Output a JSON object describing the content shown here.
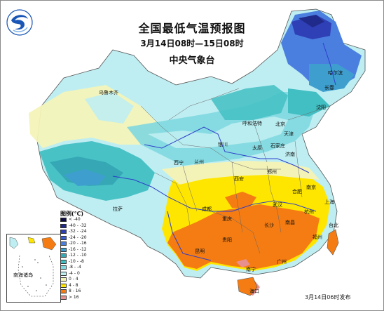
{
  "header": {
    "title": "全国最低气温预报图",
    "period": "3月14日08时—15日08时",
    "agency": "中央气象台"
  },
  "legend": {
    "title": "图例(℃)",
    "items": [
      {
        "label": "< -40",
        "color": "#0b0b47"
      },
      {
        "label": "-40 - -32",
        "color": "#1f2a8a"
      },
      {
        "label": "-32 - -24",
        "color": "#2f3fb6"
      },
      {
        "label": "-24 - -20",
        "color": "#3b5fd0"
      },
      {
        "label": "-20 - -16",
        "color": "#4a7fe0"
      },
      {
        "label": "-16 - -12",
        "color": "#3e9fcf"
      },
      {
        "label": "-12 - -10",
        "color": "#35a7b5"
      },
      {
        "label": "-10 - -8",
        "color": "#42bfc3"
      },
      {
        "label": "-8 - -4",
        "color": "#7fd8e0"
      },
      {
        "label": "-4 - 0",
        "color": "#bfeef2"
      },
      {
        "label": "0 - 4",
        "color": "#f3f3b8"
      },
      {
        "label": "4 - 8",
        "color": "#ffe600"
      },
      {
        "label": "8 - 16",
        "color": "#f57c12"
      },
      {
        "label": "> 16",
        "color": "#e88f8f"
      }
    ]
  },
  "cities": [
    {
      "name": "乌鲁木齐"
    },
    {
      "name": "哈尔滨"
    },
    {
      "name": "长春"
    },
    {
      "name": "沈阳"
    },
    {
      "name": "呼和浩特"
    },
    {
      "name": "北京"
    },
    {
      "name": "天津"
    },
    {
      "name": "石家庄"
    },
    {
      "name": "太原"
    },
    {
      "name": "济南"
    },
    {
      "name": "银川"
    },
    {
      "name": "兰州"
    },
    {
      "name": "西宁"
    },
    {
      "name": "郑州"
    },
    {
      "name": "西安"
    },
    {
      "name": "合肥"
    },
    {
      "name": "南京"
    },
    {
      "name": "上海"
    },
    {
      "name": "武汉"
    },
    {
      "name": "杭州"
    },
    {
      "name": "成都"
    },
    {
      "name": "重庆"
    },
    {
      "name": "拉萨"
    },
    {
      "name": "长沙"
    },
    {
      "name": "南昌"
    },
    {
      "name": "福州"
    },
    {
      "name": "贵阳"
    },
    {
      "name": "昆明"
    },
    {
      "name": "南宁"
    },
    {
      "name": "广州"
    },
    {
      "name": "台北"
    },
    {
      "name": "海口"
    }
  ],
  "inset": {
    "label": "南海诸岛"
  },
  "footer": {
    "issued": "3月14日06时发布"
  }
}
